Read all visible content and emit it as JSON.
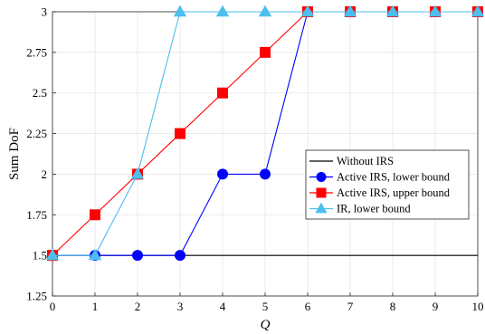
{
  "chart_data": {
    "type": "line",
    "xlabel": "Q",
    "ylabel": "Sum DoF",
    "xlim": [
      0,
      10
    ],
    "ylim": [
      1.25,
      3
    ],
    "xticks": [
      "0",
      "1",
      "2",
      "3",
      "4",
      "5",
      "6",
      "7",
      "8",
      "9",
      "10"
    ],
    "yticks": [
      "1.25",
      "1.5",
      "1.75",
      "2",
      "2.25",
      "2.5",
      "2.75",
      "3"
    ],
    "grid": true,
    "legend_position": "center-right",
    "x": [
      0,
      1,
      2,
      3,
      4,
      5,
      6,
      7,
      8,
      9,
      10
    ],
    "series": [
      {
        "name": "Without IRS",
        "color": "#000000",
        "marker": "none",
        "values": [
          1.5,
          1.5,
          1.5,
          1.5,
          1.5,
          1.5,
          1.5,
          1.5,
          1.5,
          1.5,
          1.5
        ]
      },
      {
        "name": "Active IRS, lower bound",
        "color": "#0000ff",
        "marker": "circle",
        "values": [
          1.5,
          1.5,
          1.5,
          1.5,
          2,
          2,
          3,
          3,
          3,
          3,
          3
        ]
      },
      {
        "name": "Active IRS, upper bound",
        "color": "#ff0000",
        "marker": "square",
        "values": [
          1.5,
          1.75,
          2,
          2.25,
          2.5,
          2.75,
          3,
          3,
          3,
          3,
          3
        ]
      },
      {
        "name": "IR, lower bound",
        "color": "#4dbeee",
        "marker": "triangle",
        "values": [
          1.5,
          1.5,
          2,
          3,
          3,
          3,
          3,
          3,
          3,
          3,
          3
        ]
      }
    ]
  }
}
